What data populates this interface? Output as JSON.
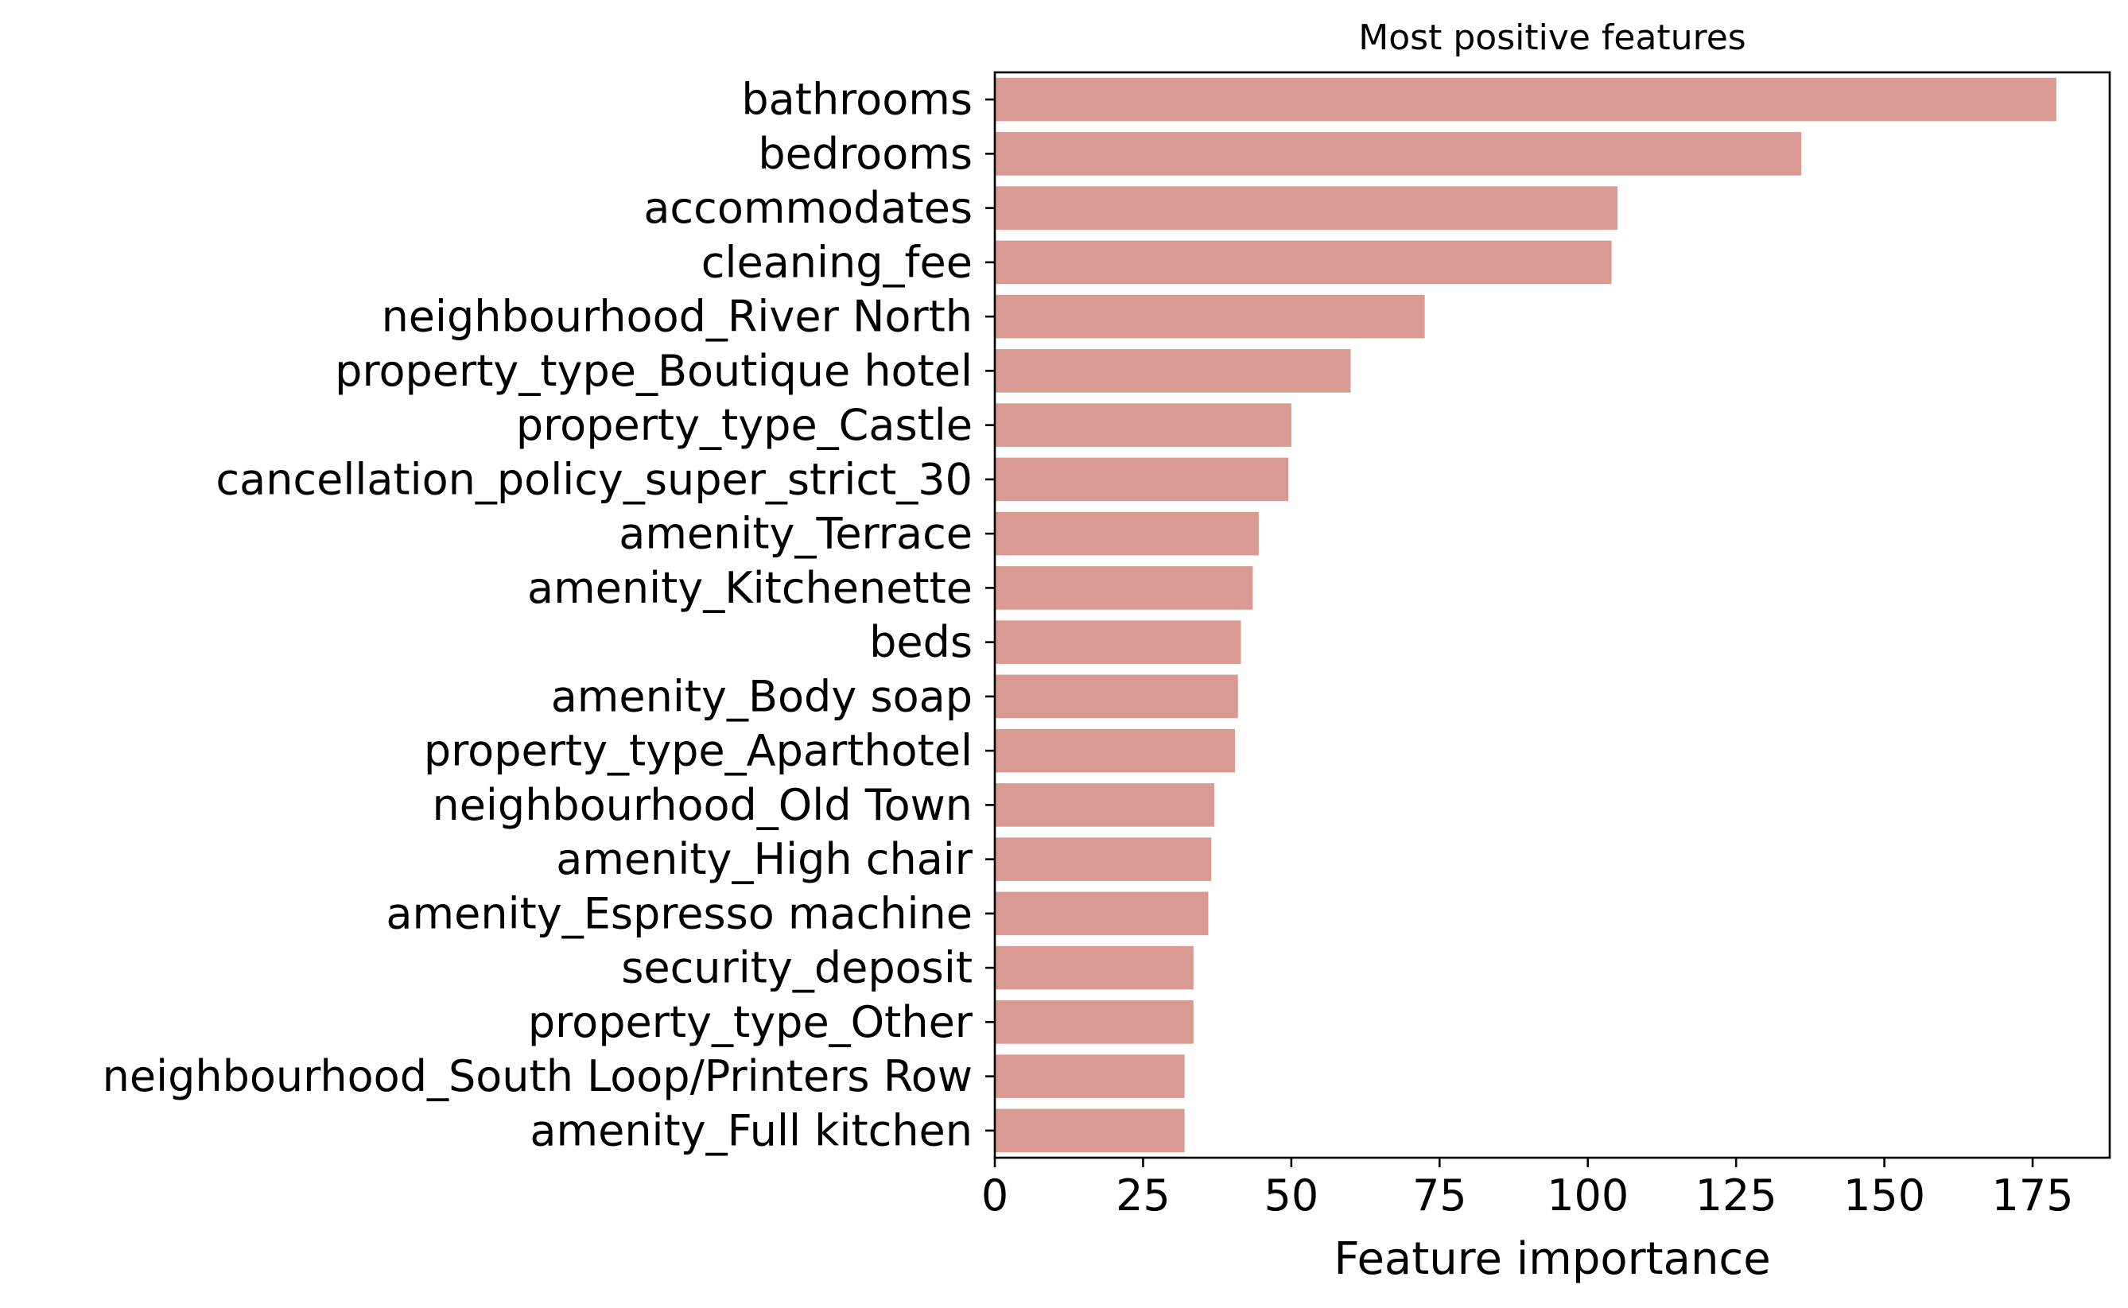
{
  "chart_data": {
    "type": "bar",
    "orientation": "horizontal",
    "title": "Most positive features",
    "xlabel": "Feature importance",
    "ylabel": "",
    "xlim": [
      0,
      188
    ],
    "xticks": [
      0,
      25,
      50,
      75,
      100,
      125,
      150,
      175
    ],
    "grid": false,
    "legend": "none",
    "bar_color": "#d99a93",
    "categories": [
      "bathrooms",
      "bedrooms",
      "accommodates",
      "cleaning_fee",
      "neighbourhood_River North",
      "property_type_Boutique hotel",
      "property_type_Castle",
      "cancellation_policy_super_strict_30",
      "amenity_Terrace",
      "amenity_Kitchenette",
      "beds",
      "amenity_Body soap",
      "property_type_Aparthotel",
      "neighbourhood_Old Town",
      "amenity_High chair",
      "amenity_Espresso machine",
      "security_deposit",
      "property_type_Other",
      "neighbourhood_South Loop/Printers Row",
      "amenity_Full kitchen"
    ],
    "values": [
      179,
      136,
      105,
      104,
      72.5,
      60,
      50,
      49.5,
      44.5,
      43.5,
      41.5,
      41,
      40.5,
      37,
      36.5,
      36,
      33.5,
      33.5,
      32,
      32
    ]
  }
}
